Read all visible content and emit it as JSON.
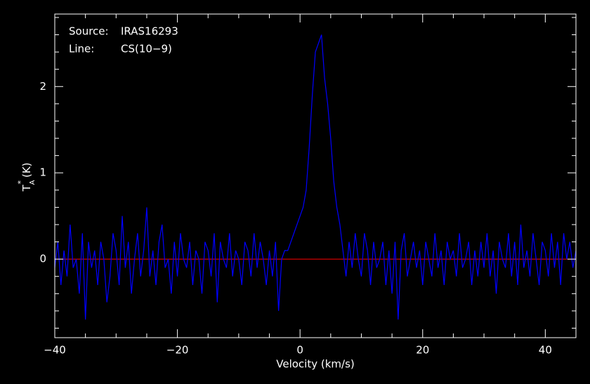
{
  "chart_data": {
    "type": "line",
    "annotations": [
      {
        "label": "Source:",
        "text": "IRAS16293"
      },
      {
        "label": "Line:",
        "text": "CS(10−9)"
      }
    ],
    "xlabel": "Velocity (km/s)",
    "ylabel": {
      "main": "T",
      "sup": "*",
      "sub": "A",
      "unit": "(K)"
    },
    "xlim": [
      -40,
      45
    ],
    "ylim": [
      -0.91,
      2.84
    ],
    "xticks": [
      {
        "value": -40,
        "label": "−40"
      },
      {
        "value": -20,
        "label": "−20"
      },
      0,
      20,
      40
    ],
    "yticks": [
      0,
      1,
      2
    ],
    "xticks_minor": [
      -35,
      -30,
      -25,
      -15,
      -10,
      -5,
      5,
      10,
      15,
      25,
      30,
      35,
      45
    ],
    "yticks_minor": [
      -0.8,
      -0.6,
      -0.4,
      -0.2,
      0.2,
      0.4,
      0.6,
      0.8,
      1.2,
      1.4,
      1.6,
      1.8,
      2.2,
      2.4,
      2.6,
      2.8
    ],
    "baseline": 0,
    "baseline_color": "#ff0000",
    "x": [
      -40,
      -39.5,
      -39,
      -38.5,
      -38,
      -37.5,
      -37,
      -36.5,
      -36,
      -35.5,
      -35,
      -34.5,
      -34,
      -33.5,
      -33,
      -32.5,
      -32,
      -31.5,
      -31,
      -30.5,
      -30,
      -29.5,
      -29,
      -28.5,
      -28,
      -27.5,
      -27,
      -26.5,
      -26,
      -25.5,
      -25,
      -24.5,
      -24,
      -23.5,
      -23,
      -22.5,
      -22,
      -21.5,
      -21,
      -20.5,
      -20,
      -19.5,
      -19,
      -18.5,
      -18,
      -17.5,
      -17,
      -16.5,
      -16,
      -15.5,
      -15,
      -14.5,
      -14,
      -13.5,
      -13,
      -12.5,
      -12,
      -11.5,
      -11,
      -10.5,
      -10,
      -9.5,
      -9,
      -8.5,
      -8,
      -7.5,
      -7,
      -6.5,
      -6,
      -5.5,
      -5,
      -4.5,
      -4,
      -3.5,
      -3,
      -2.5,
      -2,
      -1.5,
      -1,
      -0.5,
      0,
      0.5,
      1,
      1.5,
      2,
      2.5,
      3,
      3.5,
      4,
      4.5,
      5,
      5.5,
      6,
      6.5,
      7,
      7.5,
      8,
      8.5,
      9,
      9.5,
      10,
      10.5,
      11,
      11.5,
      12,
      12.5,
      13,
      13.5,
      14,
      14.5,
      15,
      15.5,
      16,
      16.5,
      17,
      17.5,
      18,
      18.5,
      19,
      19.5,
      20,
      20.5,
      21,
      21.5,
      22,
      22.5,
      23,
      23.5,
      24,
      24.5,
      25,
      25.5,
      26,
      26.5,
      27,
      27.5,
      28,
      28.5,
      29,
      29.5,
      30,
      30.5,
      31,
      31.5,
      32,
      32.5,
      33,
      33.5,
      34,
      34.5,
      35,
      35.5,
      36,
      36.5,
      37,
      37.5,
      38,
      38.5,
      39,
      39.5,
      40,
      40.5,
      41,
      41.5,
      42,
      42.5,
      43,
      43.5,
      44,
      44.5,
      45
    ],
    "series": [
      {
        "color": "#0000ff",
        "values": [
          -0.1,
          0.2,
          -0.3,
          0.1,
          -0.2,
          0.4,
          -0.1,
          0.0,
          -0.4,
          0.3,
          -0.7,
          0.2,
          -0.1,
          0.1,
          -0.3,
          0.2,
          0.0,
          -0.5,
          -0.2,
          0.3,
          0.1,
          -0.3,
          0.5,
          -0.1,
          0.2,
          -0.4,
          0.0,
          0.3,
          -0.2,
          0.1,
          0.6,
          -0.2,
          0.1,
          -0.3,
          0.2,
          0.4,
          -0.1,
          0.0,
          -0.4,
          0.2,
          -0.2,
          0.3,
          0.0,
          -0.1,
          0.2,
          -0.3,
          0.1,
          0.0,
          -0.4,
          0.2,
          0.1,
          -0.2,
          0.3,
          -0.5,
          0.2,
          0.0,
          -0.1,
          0.3,
          -0.2,
          0.1,
          0.0,
          -0.3,
          0.2,
          0.1,
          -0.2,
          0.3,
          -0.1,
          0.2,
          0.0,
          -0.3,
          0.1,
          -0.2,
          0.2,
          -0.6,
          0.0,
          0.1,
          0.1,
          0.2,
          0.3,
          0.4,
          0.5,
          0.6,
          0.8,
          1.3,
          1.9,
          2.4,
          2.5,
          2.6,
          2.1,
          1.8,
          1.4,
          0.9,
          0.6,
          0.4,
          0.1,
          -0.2,
          0.2,
          -0.1,
          0.3,
          0.0,
          -0.2,
          0.3,
          0.1,
          -0.3,
          0.2,
          -0.1,
          0.0,
          0.2,
          -0.3,
          0.1,
          -0.4,
          0.2,
          -0.7,
          0.1,
          0.3,
          -0.2,
          0.0,
          0.2,
          -0.1,
          0.1,
          -0.3,
          0.2,
          0.0,
          -0.2,
          0.3,
          -0.1,
          0.1,
          -0.3,
          0.2,
          0.0,
          0.1,
          -0.2,
          0.3,
          -0.1,
          0.0,
          0.2,
          -0.3,
          0.1,
          -0.2,
          0.2,
          -0.1,
          0.3,
          -0.2,
          0.1,
          -0.4,
          0.2,
          0.0,
          -0.1,
          0.3,
          -0.2,
          0.2,
          -0.3,
          0.4,
          -0.1,
          0.1,
          -0.2,
          0.3,
          0.0,
          -0.3,
          0.2,
          0.1,
          -0.2,
          0.3,
          -0.1,
          0.2,
          -0.3,
          0.3,
          0.0,
          0.2,
          -0.1,
          0.1
        ]
      }
    ]
  }
}
